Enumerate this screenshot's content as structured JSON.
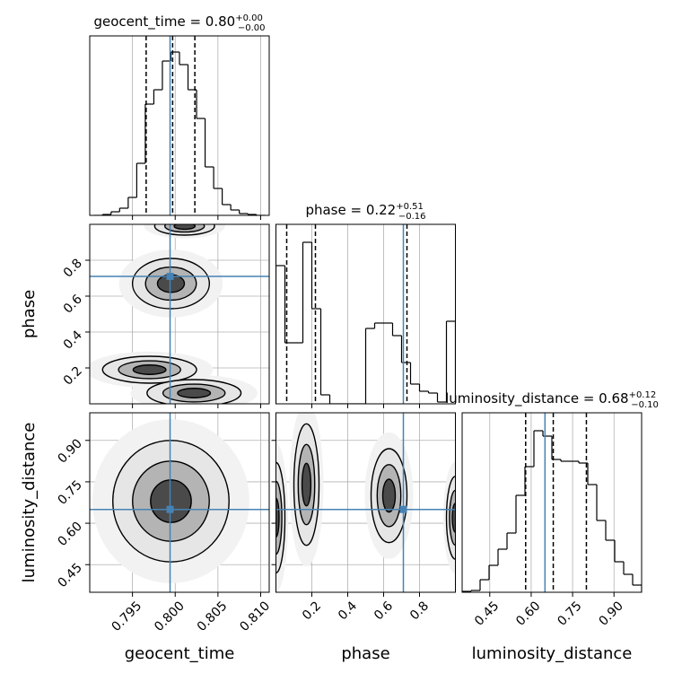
{
  "chart_data": {
    "type": "corner",
    "hist_ylim": [
      0,
      1
    ],
    "truth_color": "#4682b4",
    "grid": true,
    "parameters": [
      {
        "name": "geocent_time",
        "lim": [
          0.79,
          0.811
        ],
        "ticks": [
          0.795,
          {
            "value": 0.8,
            "label": "0.800"
          },
          0.805,
          {
            "value": 0.81,
            "label": "0.810"
          }
        ],
        "truth": 0.7994,
        "title": "geocent_time = 0.80",
        "title_upper": "+0.00",
        "title_lower": "−0.00",
        "quantiles": [
          0.7966,
          0.7997,
          0.8023
        ],
        "hist": {
          "bins": [
            0.7905,
            0.7915,
            0.7925,
            0.7935,
            0.7945,
            0.7955,
            0.7965,
            0.7975,
            0.7985,
            0.7995,
            0.8005,
            0.8015,
            0.8025,
            0.8035,
            0.8045,
            0.8055,
            0.8065,
            0.8075,
            0.8085,
            0.8095,
            0.8105
          ],
          "values": [
            0,
            0.005,
            0.02,
            0.04,
            0.1,
            0.29,
            0.62,
            0.7,
            0.86,
            0.91,
            0.84,
            0.7,
            0.54,
            0.27,
            0.15,
            0.06,
            0.03,
            0.01,
            0.005,
            0
          ]
        }
      },
      {
        "name": "phase",
        "lim": [
          0,
          1.0
        ],
        "ticks": [
          0.2,
          0.4,
          0.6,
          0.8
        ],
        "truth": 0.71,
        "title": "phase = 0.22",
        "title_upper": "+0.51",
        "title_lower": "−0.16",
        "quantiles": [
          0.06,
          0.22,
          0.73
        ],
        "hist": {
          "bins": [
            0,
            0.05,
            0.1,
            0.15,
            0.2,
            0.25,
            0.3,
            0.35,
            0.4,
            0.45,
            0.5,
            0.55,
            0.6,
            0.65,
            0.7,
            0.75,
            0.8,
            0.85,
            0.9,
            0.95,
            1.0
          ],
          "values": [
            0.77,
            0.34,
            0.34,
            0.9,
            0.53,
            0.05,
            0,
            0,
            0,
            0,
            0.42,
            0.45,
            0.45,
            0.38,
            0.23,
            0.11,
            0.07,
            0.06,
            0.01,
            0.46
          ]
        }
      },
      {
        "name": "luminosity_distance",
        "lim": [
          0.35,
          1.0
        ],
        "ticks": [
          0.45,
          {
            "value": 0.6,
            "label": "0.60"
          },
          0.75,
          {
            "value": 0.9,
            "label": "0.90"
          }
        ],
        "truth": 0.65,
        "title": "luminosity_distance = 0.68",
        "title_upper": "+0.12",
        "title_lower": "−0.10",
        "quantiles": [
          0.58,
          0.68,
          0.8
        ],
        "hist": {
          "bins": [
            0.35,
            0.3825,
            0.415,
            0.4475,
            0.48,
            0.5125,
            0.545,
            0.5775,
            0.61,
            0.6425,
            0.675,
            0.7075,
            0.74,
            0.7725,
            0.805,
            0.8375,
            0.87,
            0.9025,
            0.935,
            0.9675,
            1.0
          ],
          "values": [
            0.005,
            0.01,
            0.07,
            0.15,
            0.24,
            0.33,
            0.54,
            0.7,
            0.9,
            0.87,
            0.74,
            0.73,
            0.73,
            0.72,
            0.6,
            0.4,
            0.29,
            0.17,
            0.1,
            0.04
          ]
        }
      }
    ],
    "pairs": [
      {
        "x": 0,
        "y": 1,
        "blobs": [
          {
            "x": 0.8011,
            "y": 0.99,
            "rx": 0.0035,
            "ry": 0.05
          },
          {
            "x": 0.7995,
            "y": 0.67,
            "rx": 0.0045,
            "ry": 0.14
          },
          {
            "x": 0.797,
            "y": 0.19,
            "rx": 0.0055,
            "ry": 0.075
          },
          {
            "x": 0.8022,
            "y": 0.06,
            "rx": 0.0055,
            "ry": 0.075
          }
        ]
      },
      {
        "x": 0,
        "y": 2,
        "blobs": [
          {
            "x": 0.7995,
            "y": 0.68,
            "rx": 0.0068,
            "ry": 0.22
          }
        ]
      },
      {
        "x": 1,
        "y": 2,
        "blobs": [
          {
            "x": 0.0,
            "y": 0.62,
            "rx": 0.05,
            "ry": 0.2
          },
          {
            "x": 0.17,
            "y": 0.74,
            "rx": 0.07,
            "ry": 0.22
          },
          {
            "x": 0.63,
            "y": 0.7,
            "rx": 0.1,
            "ry": 0.17
          },
          {
            "x": 1.0,
            "y": 0.62,
            "rx": 0.05,
            "ry": 0.15
          }
        ]
      }
    ]
  }
}
